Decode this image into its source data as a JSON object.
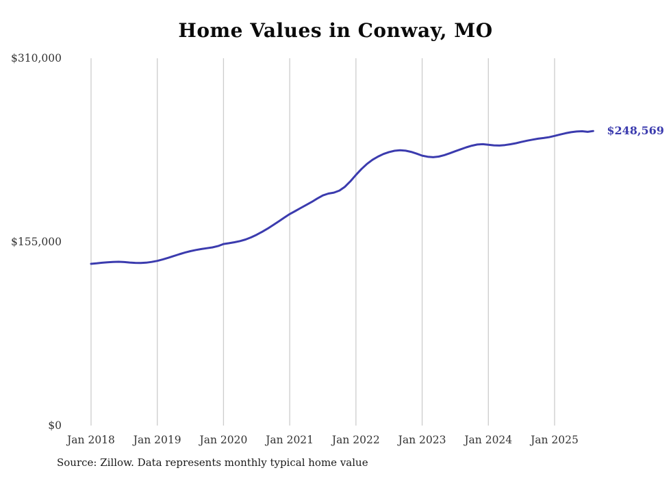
{
  "page": {
    "background": "#ffffff"
  },
  "chart_data": {
    "type": "line",
    "title": "Home Values in Conway, MO",
    "x_start_month": "Jan 2018",
    "x_end_month": "Aug 2025",
    "x_tick_labels": [
      "Jan 2018",
      "Jan 2019",
      "Jan 2020",
      "Jan 2021",
      "Jan 2022",
      "Jan 2023",
      "Jan 2024",
      "Jan 2025"
    ],
    "y_ticks": [
      {
        "label": "$0",
        "value": 0
      },
      {
        "label": "$155,000",
        "value": 155000
      },
      {
        "label": "$310,000",
        "value": 310000
      }
    ],
    "ylim": [
      0,
      310000
    ],
    "grid": "vertical-only",
    "legend": "none",
    "line_color": "#3b3bae",
    "grid_color": "#cccccc",
    "tick_color": "#333333",
    "end_label": "$248,569",
    "end_value": 248569,
    "series": [
      {
        "name": "Monthly typical home value",
        "values": [
          136500,
          136900,
          137400,
          137800,
          138100,
          138200,
          138000,
          137600,
          137300,
          137200,
          137500,
          138100,
          139000,
          140200,
          141600,
          143100,
          144600,
          146000,
          147200,
          148200,
          149000,
          149700,
          150400,
          151500,
          153200,
          153900,
          154700,
          155700,
          157000,
          158800,
          161000,
          163500,
          166200,
          169200,
          172300,
          175500,
          178500,
          181000,
          183600,
          186200,
          188800,
          191600,
          194200,
          195800,
          196600,
          198300,
          201500,
          206200,
          211500,
          216500,
          220800,
          224300,
          227000,
          229200,
          230800,
          231900,
          232300,
          232000,
          231000,
          229500,
          227800,
          226900,
          226500,
          227000,
          228200,
          229800,
          231500,
          233200,
          234800,
          236200,
          237200,
          237500,
          237000,
          236500,
          236300,
          236700,
          237400,
          238300,
          239400,
          240400,
          241300,
          242100,
          242700,
          243400,
          244500,
          245600,
          246700,
          247600,
          248200,
          248400,
          247900,
          248569
        ]
      }
    ]
  },
  "footer": {
    "source": "Source: Zillow. Data represents monthly typical home value"
  }
}
